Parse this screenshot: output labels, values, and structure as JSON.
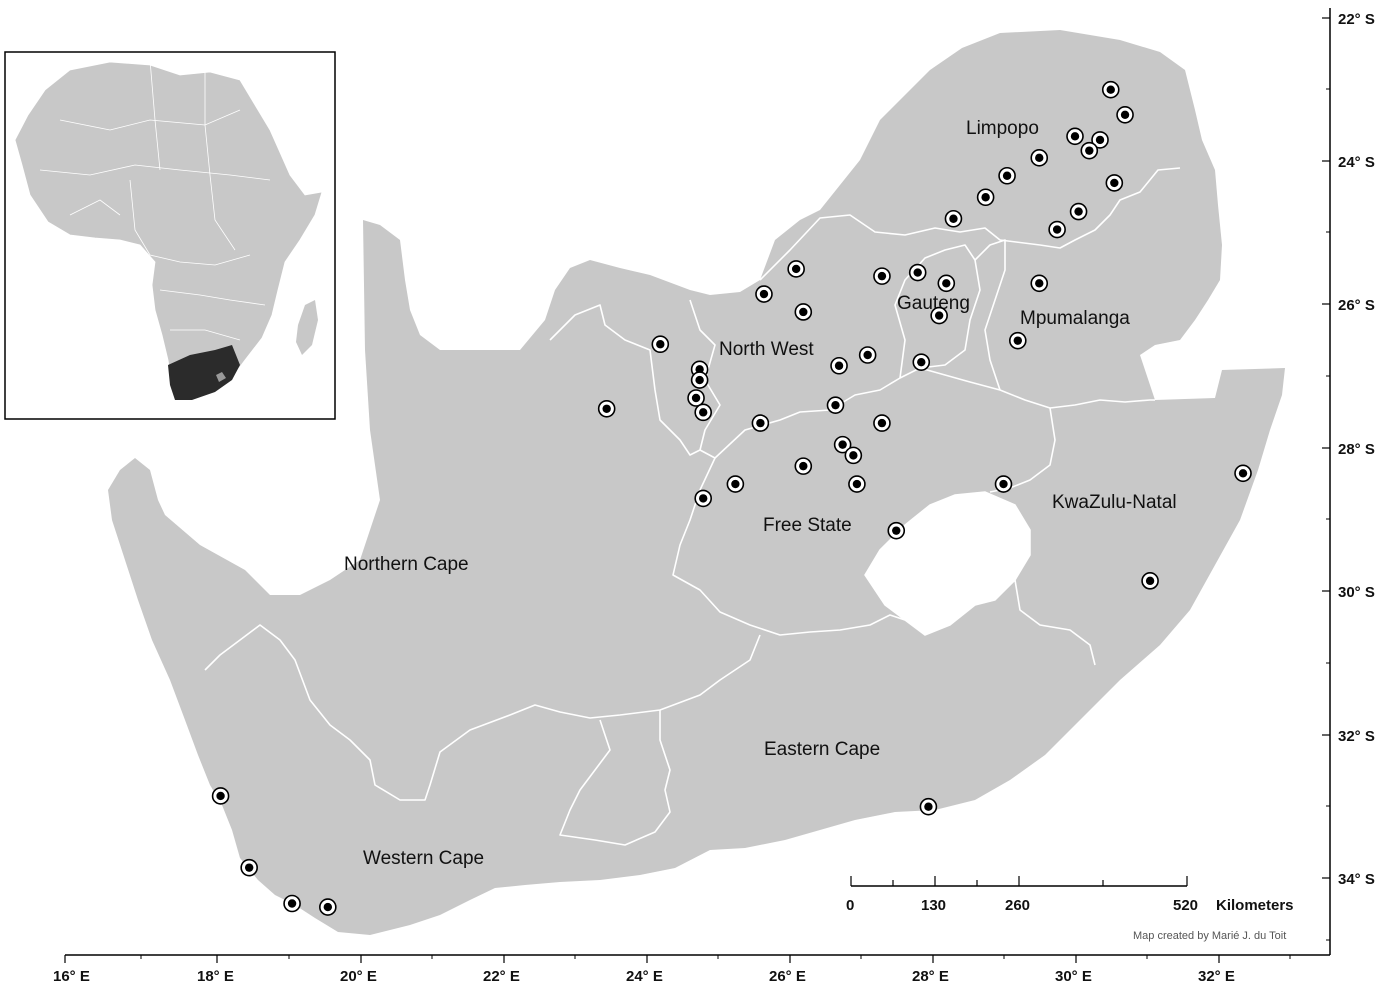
{
  "colors": {
    "land": "#c8c8c8",
    "border": "#ffffff",
    "highlight": "#2b2b2b",
    "frame": "#000000"
  },
  "provinces": [
    {
      "name": "Limpopo"
    },
    {
      "name": "Gauteng"
    },
    {
      "name": "Mpumalanga"
    },
    {
      "name": "North West"
    },
    {
      "name": "Free State"
    },
    {
      "name": "KwaZulu-Natal"
    },
    {
      "name": "Northern Cape"
    },
    {
      "name": "Eastern Cape"
    },
    {
      "name": "Western Cape"
    }
  ],
  "longitude_ticks": [
    "16° E",
    "18° E",
    "20° E",
    "22° E",
    "24° E",
    "26° E",
    "28° E",
    "30° E",
    "32° E"
  ],
  "latitude_ticks": [
    "22° S",
    "24° S",
    "26° S",
    "28° S",
    "30° S",
    "32° S",
    "34° S"
  ],
  "scale_bar": {
    "labels": [
      "0",
      "130",
      "260",
      "520"
    ],
    "unit": "Kilometers"
  },
  "credit": "Map created by Marié J. du Toit",
  "sites": [
    {
      "lon": 30.5,
      "lat": -23.0
    },
    {
      "lon": 30.7,
      "lat": -23.35
    },
    {
      "lon": 30.0,
      "lat": -23.65
    },
    {
      "lon": 30.35,
      "lat": -23.7
    },
    {
      "lon": 30.2,
      "lat": -23.85
    },
    {
      "lon": 29.5,
      "lat": -23.95
    },
    {
      "lon": 29.05,
      "lat": -24.2
    },
    {
      "lon": 30.55,
      "lat": -24.3
    },
    {
      "lon": 28.75,
      "lat": -24.5
    },
    {
      "lon": 30.05,
      "lat": -24.7
    },
    {
      "lon": 28.3,
      "lat": -24.8
    },
    {
      "lon": 29.75,
      "lat": -24.95
    },
    {
      "lon": 26.1,
      "lat": -25.5
    },
    {
      "lon": 27.3,
      "lat": -25.6
    },
    {
      "lon": 27.8,
      "lat": -25.55
    },
    {
      "lon": 25.65,
      "lat": -25.85
    },
    {
      "lon": 28.2,
      "lat": -25.7
    },
    {
      "lon": 29.5,
      "lat": -25.7
    },
    {
      "lon": 26.2,
      "lat": -26.1
    },
    {
      "lon": 28.1,
      "lat": -26.15
    },
    {
      "lon": 29.2,
      "lat": -26.5
    },
    {
      "lon": 24.2,
      "lat": -26.55
    },
    {
      "lon": 27.1,
      "lat": -26.7
    },
    {
      "lon": 26.7,
      "lat": -26.85
    },
    {
      "lon": 27.85,
      "lat": -26.8
    },
    {
      "lon": 24.75,
      "lat": -26.9
    },
    {
      "lon": 24.75,
      "lat": -27.05
    },
    {
      "lon": 24.7,
      "lat": -27.3
    },
    {
      "lon": 26.65,
      "lat": -27.4
    },
    {
      "lon": 23.45,
      "lat": -27.45
    },
    {
      "lon": 24.8,
      "lat": -27.5
    },
    {
      "lon": 25.6,
      "lat": -27.65
    },
    {
      "lon": 27.3,
      "lat": -27.65
    },
    {
      "lon": 26.75,
      "lat": -27.95
    },
    {
      "lon": 26.9,
      "lat": -28.1
    },
    {
      "lon": 26.2,
      "lat": -28.25
    },
    {
      "lon": 25.25,
      "lat": -28.5
    },
    {
      "lon": 26.95,
      "lat": -28.5
    },
    {
      "lon": 29.0,
      "lat": -28.5
    },
    {
      "lon": 24.8,
      "lat": -28.7
    },
    {
      "lon": 27.5,
      "lat": -29.15
    },
    {
      "lon": 32.35,
      "lat": -28.35
    },
    {
      "lon": 31.05,
      "lat": -29.85
    },
    {
      "lon": 27.95,
      "lat": -33.0
    },
    {
      "lon": 18.05,
      "lat": -32.85
    },
    {
      "lon": 18.45,
      "lat": -33.85
    },
    {
      "lon": 19.05,
      "lat": -34.35
    },
    {
      "lon": 19.55,
      "lat": -34.4
    }
  ]
}
